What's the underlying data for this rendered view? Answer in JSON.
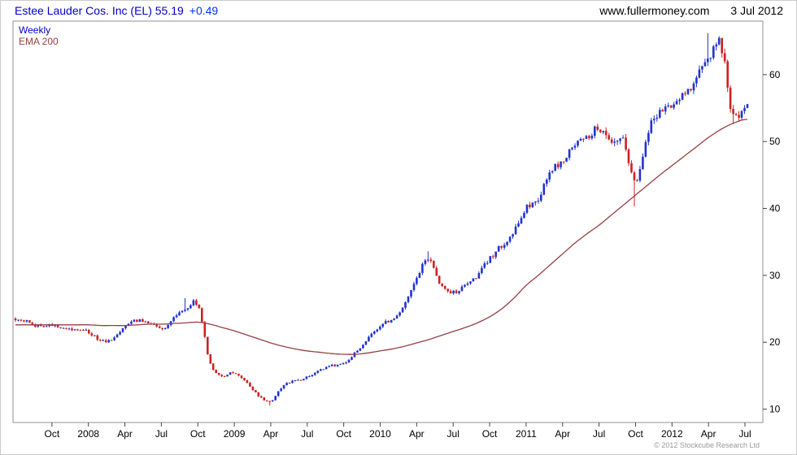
{
  "header": {
    "title": "Estee Lauder Cos. Inc (EL) 55.19",
    "change": "+0.49",
    "site": "www.fullermoney.com",
    "date": "3 Jul 2012"
  },
  "legend": {
    "timeframe": "Weekly",
    "indicator": "EMA 200"
  },
  "footer": {
    "copyright": "© 2012 Stockcube Research Ltd"
  },
  "colors": {
    "up": "#2233cc",
    "down": "#cc2222",
    "ema": "#954040",
    "title": "#0000c0",
    "change": "#0033ff",
    "legend_weekly": "#0000cc",
    "border": "#909090",
    "axis": "#444444",
    "axis_text": "#000000",
    "copyright": "#999999"
  },
  "chart_data": {
    "type": "candlestick",
    "title": "Estee Lauder Cos. Inc (EL)",
    "timeframe": "weekly",
    "overlay": "EMA 200",
    "last_price": 55.19,
    "change": 0.49,
    "grid": false,
    "legend_position": "top-left",
    "ylim": [
      8,
      68
    ],
    "yticks": [
      10,
      20,
      30,
      40,
      50,
      60
    ],
    "anchor_resolution": "monthly",
    "months": [
      "2007-07",
      "2007-08",
      "2007-09",
      "2007-10",
      "2007-11",
      "2007-12",
      "2008-01",
      "2008-02",
      "2008-03",
      "2008-04",
      "2008-05",
      "2008-06",
      "2008-07",
      "2008-08",
      "2008-09",
      "2008-10",
      "2008-11",
      "2008-12",
      "2009-01",
      "2009-02",
      "2009-03",
      "2009-04",
      "2009-05",
      "2009-06",
      "2009-07",
      "2009-08",
      "2009-09",
      "2009-10",
      "2009-11",
      "2009-12",
      "2010-01",
      "2010-02",
      "2010-03",
      "2010-04",
      "2010-05",
      "2010-06",
      "2010-07",
      "2010-08",
      "2010-09",
      "2010-10",
      "2010-11",
      "2010-12",
      "2011-01",
      "2011-02",
      "2011-03",
      "2011-04",
      "2011-05",
      "2011-06",
      "2011-07",
      "2011-08",
      "2011-09",
      "2011-10",
      "2011-11",
      "2011-12",
      "2012-01",
      "2012-02",
      "2012-03",
      "2012-04",
      "2012-05",
      "2012-06",
      "2012-07"
    ],
    "monthly_closes": [
      23.5,
      23.0,
      22.4,
      22.6,
      22.2,
      21.8,
      21.5,
      20.2,
      20.5,
      22.5,
      23.2,
      23.0,
      22.0,
      23.5,
      25.0,
      25.5,
      17.0,
      15.0,
      15.5,
      14.0,
      12.0,
      11.2,
      13.5,
      14.2,
      14.8,
      15.8,
      16.5,
      16.8,
      18.5,
      20.5,
      22.5,
      23.5,
      25.5,
      29.5,
      32.5,
      28.5,
      27.5,
      28.5,
      30.0,
      32.5,
      34.5,
      36.5,
      40.0,
      41.5,
      45.5,
      47.0,
      49.5,
      50.5,
      52.0,
      49.5,
      50.0,
      44.0,
      51.5,
      54.5,
      55.5,
      57.0,
      59.5,
      62.5,
      64.5,
      54.0,
      55.19
    ],
    "ema200": [
      22.6,
      22.6,
      22.6,
      22.6,
      22.6,
      22.6,
      22.6,
      22.5,
      22.5,
      22.5,
      22.6,
      22.7,
      22.7,
      22.8,
      22.9,
      23.0,
      22.7,
      22.2,
      21.7,
      21.1,
      20.5,
      19.9,
      19.4,
      19.0,
      18.7,
      18.5,
      18.3,
      18.2,
      18.2,
      18.4,
      18.7,
      19.0,
      19.4,
      19.9,
      20.4,
      21.0,
      21.6,
      22.2,
      22.9,
      23.8,
      25.0,
      26.6,
      28.5,
      30.0,
      31.6,
      33.2,
      34.8,
      36.2,
      37.5,
      39.0,
      40.5,
      42.0,
      43.5,
      45.0,
      46.4,
      47.8,
      49.2,
      50.6,
      51.8,
      52.7,
      53.3
    ],
    "events": [
      {
        "date": "2008-09",
        "high": 26.6
      },
      {
        "date": "2009-04",
        "low": 10.5
      },
      {
        "date": "2010-05",
        "high": 33.6
      },
      {
        "date": "2011-10",
        "low": 40.3
      },
      {
        "date": "2012-04",
        "high": 66.2
      },
      {
        "date": "2012-06",
        "low": 52.6
      }
    ],
    "xticks": [
      {
        "date": "2007-10",
        "label": "Oct"
      },
      {
        "date": "2008-01",
        "label": "2008"
      },
      {
        "date": "2008-04",
        "label": "Apr"
      },
      {
        "date": "2008-07",
        "label": "Jul"
      },
      {
        "date": "2008-10",
        "label": "Oct"
      },
      {
        "date": "2009-01",
        "label": "2009"
      },
      {
        "date": "2009-04",
        "label": "Apr"
      },
      {
        "date": "2009-07",
        "label": "Jul"
      },
      {
        "date": "2009-10",
        "label": "Oct"
      },
      {
        "date": "2010-01",
        "label": "2010"
      },
      {
        "date": "2010-04",
        "label": "Apr"
      },
      {
        "date": "2010-07",
        "label": "Jul"
      },
      {
        "date": "2010-10",
        "label": "Oct"
      },
      {
        "date": "2011-01",
        "label": "2011"
      },
      {
        "date": "2011-04",
        "label": "Apr"
      },
      {
        "date": "2011-07",
        "label": "Jul"
      },
      {
        "date": "2011-10",
        "label": "Oct"
      },
      {
        "date": "2012-01",
        "label": "2012"
      },
      {
        "date": "2012-04",
        "label": "Apr"
      },
      {
        "date": "2012-07",
        "label": "Jul"
      }
    ]
  }
}
